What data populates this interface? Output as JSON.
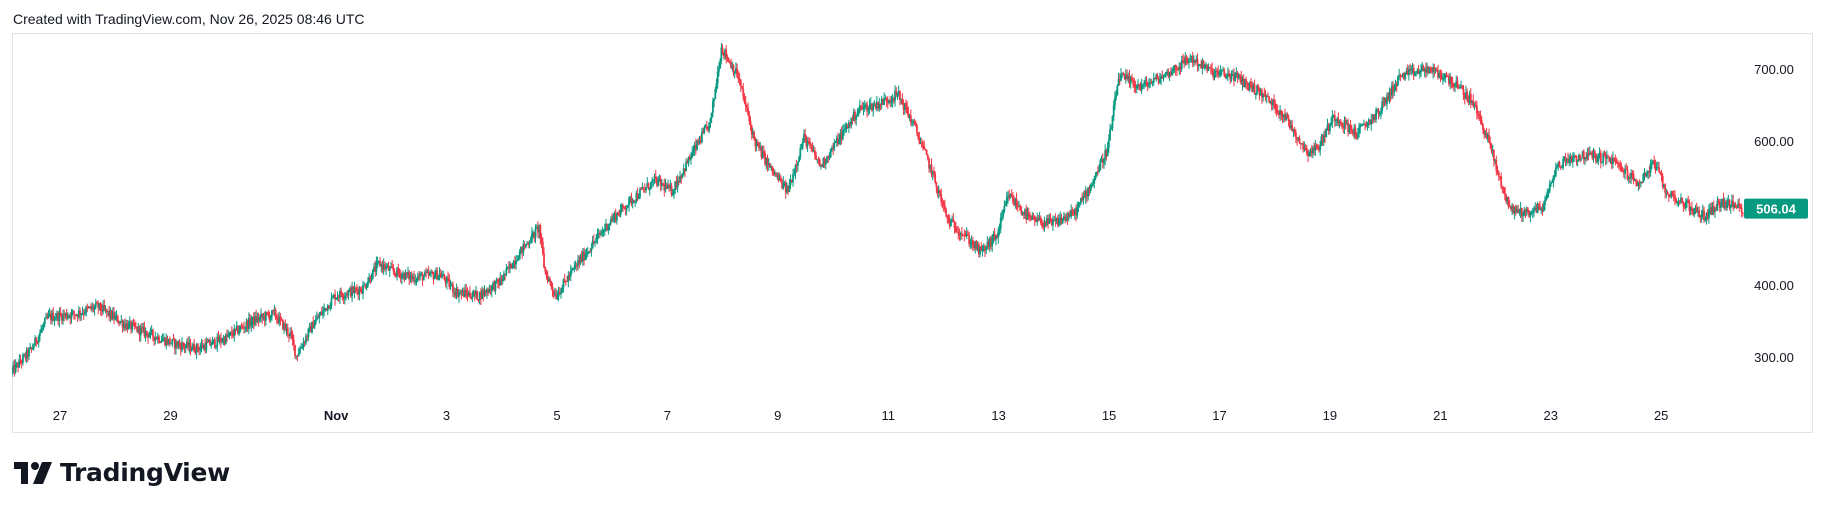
{
  "header": {
    "attribution": "Created with TradingView.com, Nov 26, 2025 08:46 UTC"
  },
  "branding": {
    "logo_icon": "tradingview-logo-icon",
    "wordmark": "TradingView"
  },
  "colors": {
    "up": "#089981",
    "down": "#f23645",
    "price_label_bg": "#089981",
    "axis_text": "#131722",
    "border": "#e0e3eb"
  },
  "chart_data": {
    "type": "candlestick",
    "title": "",
    "xlabel": "",
    "ylabel": "",
    "ylim": [
      250,
      750
    ],
    "y_ticks": [
      300,
      400,
      500,
      600,
      700
    ],
    "y_tick_labels": [
      "300.00",
      "400.00",
      "600.00",
      "700.00"
    ],
    "last_price": 506.04,
    "last_price_label": "506.04",
    "x_tick_labels": [
      "27",
      "29",
      "Nov",
      "3",
      "5",
      "7",
      "9",
      "11",
      "13",
      "15",
      "17",
      "19",
      "21",
      "23",
      "25"
    ],
    "x_tick_times": [
      1,
      3,
      6,
      8,
      10,
      12,
      14,
      16,
      18,
      20,
      22,
      24,
      26,
      28,
      30
    ],
    "x_range": [
      0.13,
      31.5
    ],
    "x_unit": "days from Oct 26, 2025",
    "price_path": [
      [
        0.13,
        278
      ],
      [
        0.5,
        310
      ],
      [
        0.8,
        355
      ],
      [
        1.3,
        360
      ],
      [
        1.7,
        370
      ],
      [
        2.2,
        345
      ],
      [
        2.7,
        330
      ],
      [
        3.1,
        318
      ],
      [
        3.5,
        312
      ],
      [
        4.0,
        325
      ],
      [
        4.5,
        350
      ],
      [
        4.9,
        360
      ],
      [
        5.2,
        330
      ],
      [
        5.3,
        302
      ],
      [
        5.6,
        345
      ],
      [
        6.0,
        385
      ],
      [
        6.5,
        395
      ],
      [
        6.8,
        430
      ],
      [
        7.0,
        420
      ],
      [
        7.4,
        410
      ],
      [
        7.9,
        415
      ],
      [
        8.2,
        390
      ],
      [
        8.6,
        385
      ],
      [
        9.0,
        405
      ],
      [
        9.3,
        440
      ],
      [
        9.7,
        480
      ],
      [
        9.8,
        420
      ],
      [
        10.0,
        385
      ],
      [
        10.4,
        430
      ],
      [
        10.7,
        460
      ],
      [
        11.0,
        490
      ],
      [
        11.4,
        520
      ],
      [
        11.8,
        545
      ],
      [
        12.1,
        530
      ],
      [
        12.6,
        600
      ],
      [
        12.8,
        625
      ],
      [
        13.0,
        730
      ],
      [
        13.3,
        690
      ],
      [
        13.6,
        600
      ],
      [
        13.9,
        560
      ],
      [
        14.2,
        530
      ],
      [
        14.5,
        605
      ],
      [
        14.8,
        565
      ],
      [
        15.1,
        600
      ],
      [
        15.5,
        645
      ],
      [
        15.8,
        650
      ],
      [
        16.2,
        665
      ],
      [
        16.5,
        620
      ],
      [
        16.8,
        560
      ],
      [
        17.1,
        490
      ],
      [
        17.4,
        470
      ],
      [
        17.7,
        445
      ],
      [
        18.0,
        470
      ],
      [
        18.2,
        525
      ],
      [
        18.6,
        490
      ],
      [
        19.0,
        485
      ],
      [
        19.4,
        500
      ],
      [
        19.7,
        540
      ],
      [
        20.0,
        590
      ],
      [
        20.2,
        690
      ],
      [
        20.6,
        675
      ],
      [
        21.0,
        690
      ],
      [
        21.5,
        715
      ],
      [
        21.9,
        695
      ],
      [
        22.3,
        690
      ],
      [
        22.8,
        665
      ],
      [
        23.2,
        635
      ],
      [
        23.6,
        585
      ],
      [
        23.8,
        590
      ],
      [
        24.1,
        635
      ],
      [
        24.5,
        610
      ],
      [
        24.9,
        640
      ],
      [
        25.3,
        690
      ],
      [
        25.8,
        700
      ],
      [
        26.2,
        685
      ],
      [
        26.6,
        655
      ],
      [
        26.9,
        600
      ],
      [
        27.1,
        545
      ],
      [
        27.3,
        505
      ],
      [
        27.6,
        500
      ],
      [
        27.9,
        510
      ],
      [
        28.1,
        560
      ],
      [
        28.3,
        575
      ],
      [
        28.7,
        580
      ],
      [
        29.1,
        575
      ],
      [
        29.4,
        555
      ],
      [
        29.6,
        540
      ],
      [
        29.9,
        570
      ],
      [
        30.1,
        530
      ],
      [
        30.5,
        510
      ],
      [
        30.8,
        495
      ],
      [
        31.1,
        515
      ],
      [
        31.5,
        506
      ]
    ]
  }
}
